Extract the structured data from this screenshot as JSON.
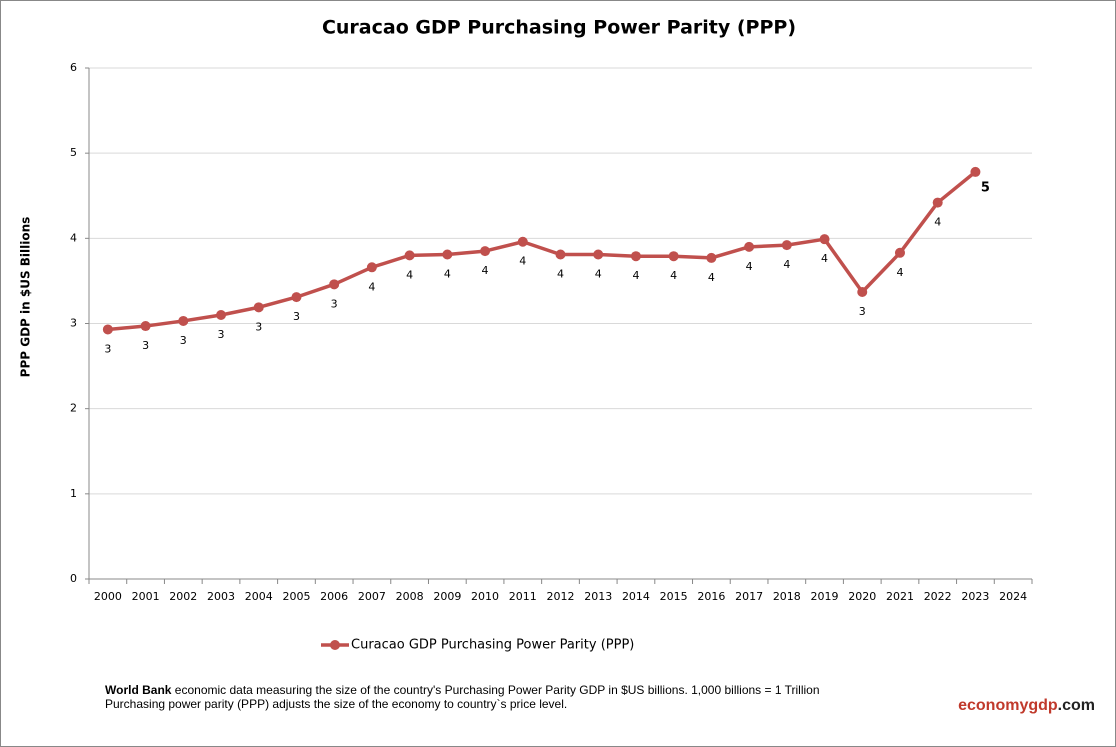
{
  "chart_data": {
    "type": "line",
    "title": "Curacao GDP Purchasing Power Parity (PPP)",
    "y_label": "PPP GDP in $US Billions",
    "categories": [
      "2000",
      "2001",
      "2002",
      "2003",
      "2004",
      "2005",
      "2006",
      "2007",
      "2008",
      "2009",
      "2010",
      "2011",
      "2012",
      "2013",
      "2014",
      "2015",
      "2016",
      "2017",
      "2018",
      "2019",
      "2020",
      "2021",
      "2022",
      "2023",
      "2024"
    ],
    "series": [
      {
        "name": "Curacao GDP Purchasing Power Parity (PPP)",
        "color": "#c0504d",
        "values": [
          2.93,
          2.97,
          3.03,
          3.1,
          3.19,
          3.31,
          3.46,
          3.66,
          3.8,
          3.81,
          3.85,
          3.96,
          3.81,
          3.81,
          3.79,
          3.79,
          3.77,
          3.9,
          3.92,
          3.99,
          3.37,
          3.83,
          4.42,
          4.78,
          null
        ],
        "value_labels": [
          "3",
          "3",
          "3",
          "3",
          "3",
          "3",
          "3",
          "4",
          "4",
          "4",
          "4",
          "4",
          "4",
          "4",
          "4",
          "4",
          "4",
          "4",
          "4",
          "4",
          "3",
          "4",
          "4",
          "5",
          null
        ]
      }
    ],
    "ylim": [
      0,
      6
    ],
    "yticks": [
      0,
      1,
      2,
      3,
      4,
      5,
      6
    ],
    "grid": true,
    "legend": "bottom"
  },
  "footer": {
    "source": "World Bank",
    "line1": "economic data  measuring the size of the country's Purchasing Power Parity GDP in $US billions. 1,000 billions = 1 Trillion",
    "line2": "Purchasing power parity (PPP) adjusts the size of the economy to country`s price level.",
    "brand": "economygdp",
    "brand_suffix": ".com"
  }
}
